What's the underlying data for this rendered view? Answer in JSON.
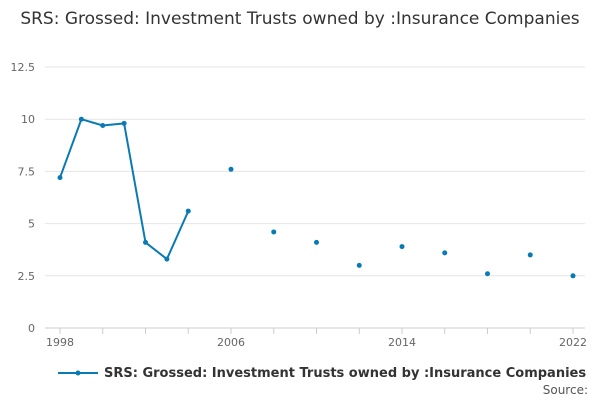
{
  "chart_data": {
    "type": "line",
    "title": "SRS: Grossed: Investment Trusts owned by :Insurance Companies",
    "x": [
      1998,
      1999,
      2000,
      2001,
      2002,
      2003,
      2004,
      2006,
      2008,
      2010,
      2012,
      2014,
      2016,
      2018,
      2020,
      2022
    ],
    "series": [
      {
        "name": "SRS: Grossed: Investment Trusts owned by :Insurance Companies",
        "values": [
          7.2,
          10.0,
          9.7,
          9.8,
          4.1,
          3.3,
          5.6,
          7.6,
          4.6,
          4.1,
          3.0,
          3.9,
          3.6,
          2.6,
          3.5,
          2.5
        ]
      }
    ],
    "xlim": [
      1998,
      2022
    ],
    "xticks": [
      1998,
      2006,
      2014,
      2022
    ],
    "ylim": [
      0,
      12.5
    ],
    "yticks": [
      "0",
      "2.5",
      "5",
      "7.5",
      "10",
      "12.5"
    ],
    "grid": true,
    "legend_position": "bottom",
    "color": "#0a7ab5"
  },
  "source_label": "Source:"
}
